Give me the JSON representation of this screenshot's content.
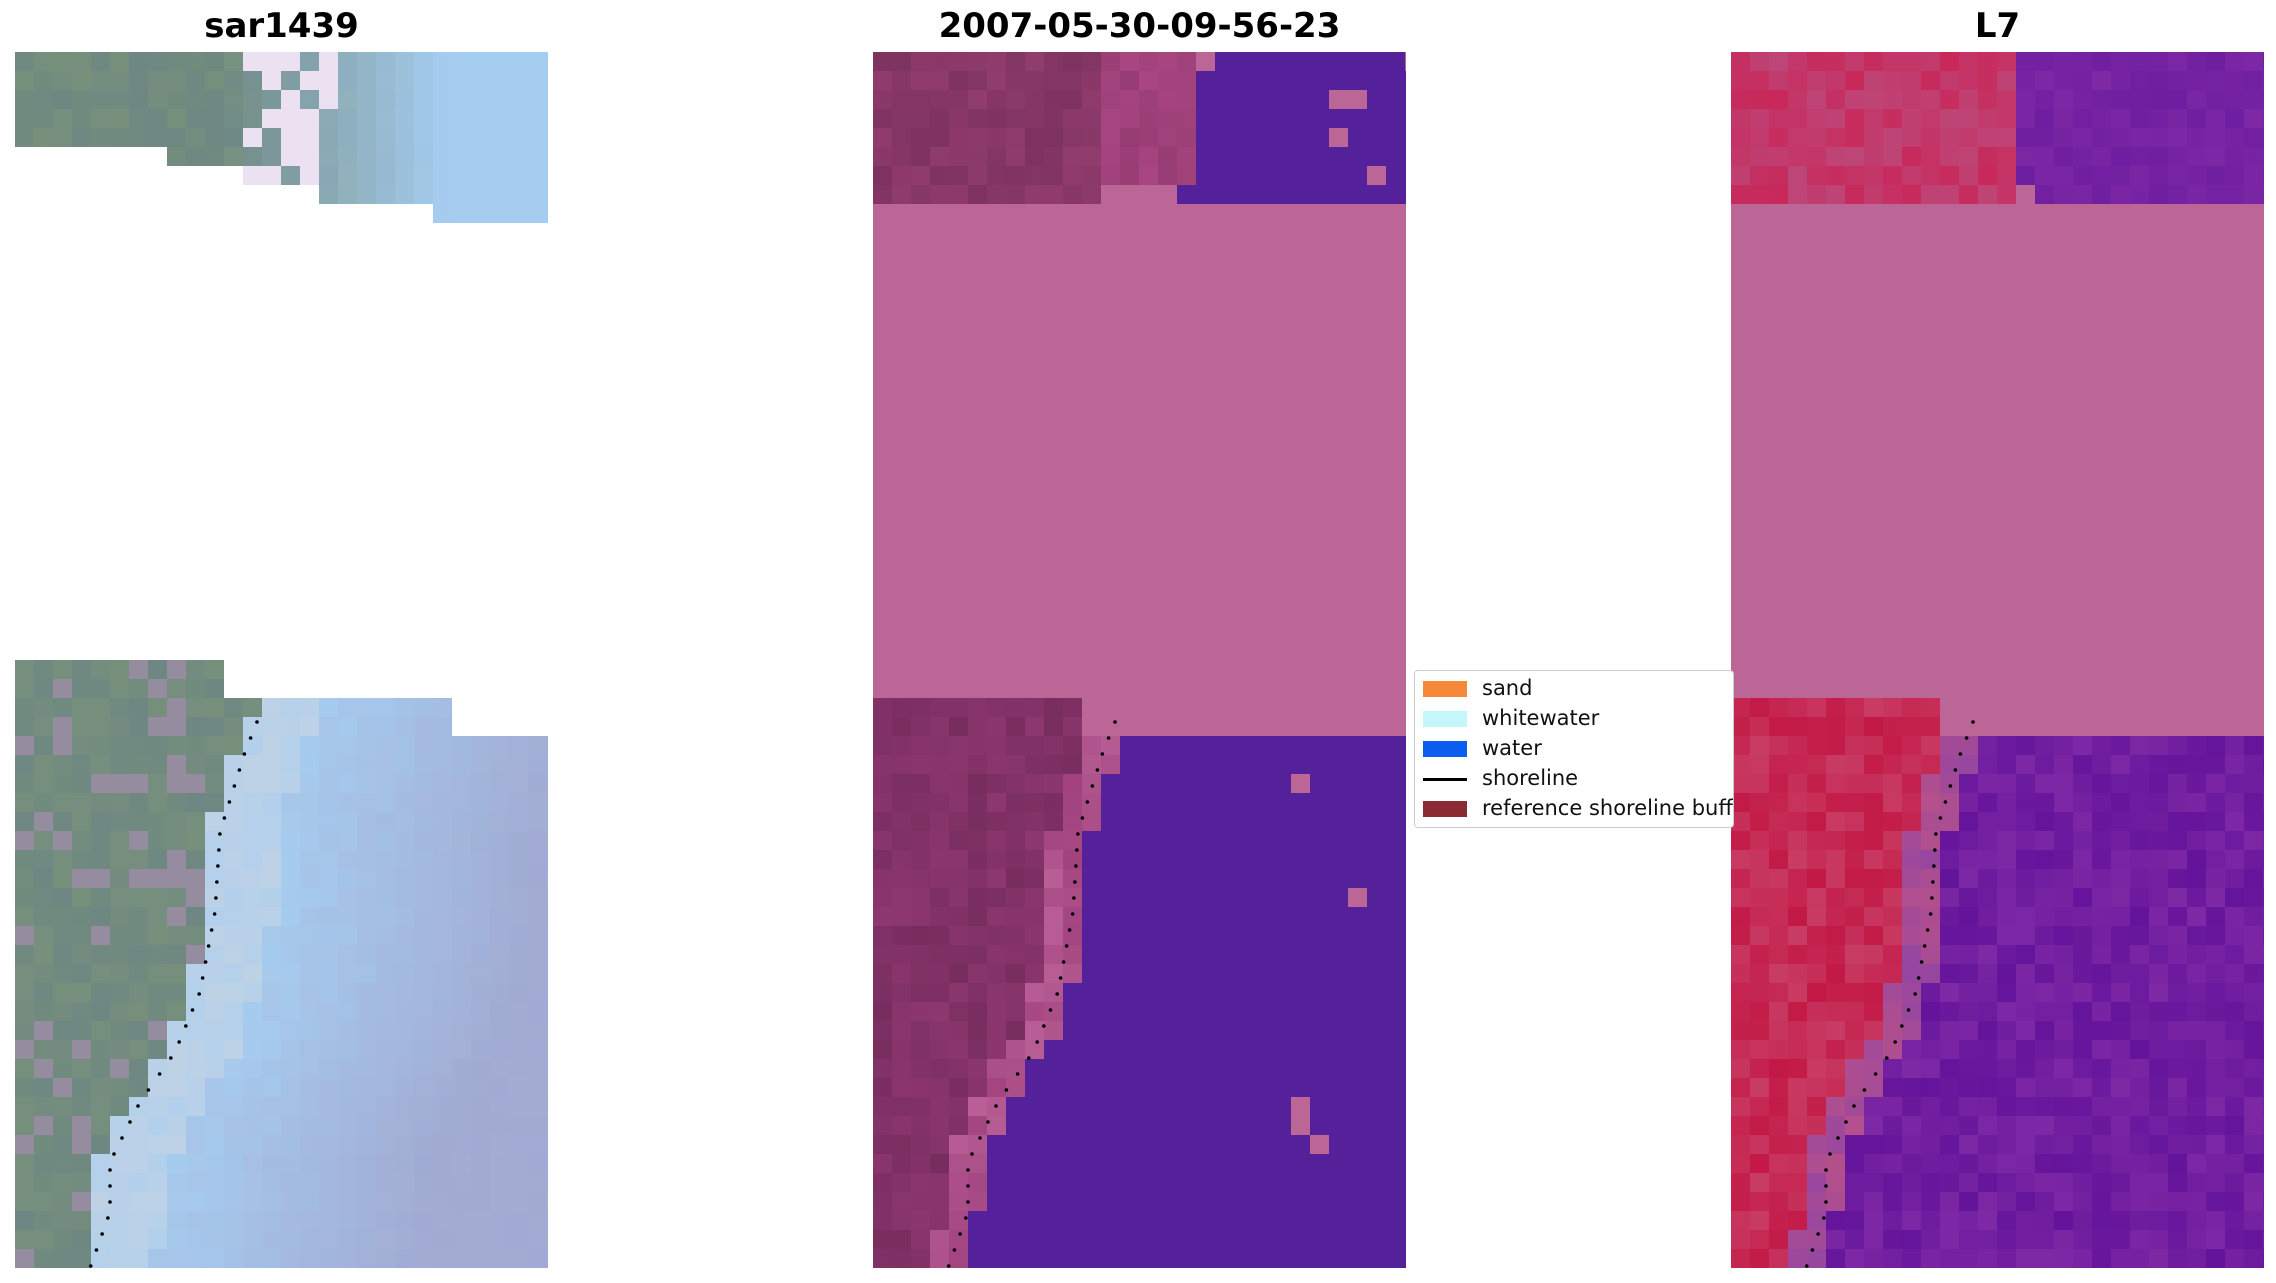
{
  "panels": [
    {
      "title": "sar1439"
    },
    {
      "title": "2007-05-30-09-56-23"
    },
    {
      "title": "L7"
    }
  ],
  "legend": [
    {
      "label": "sand",
      "color": "#f6883a",
      "kind": "patch"
    },
    {
      "label": "whitewater",
      "color": "#c4f7fb",
      "kind": "patch"
    },
    {
      "label": "water",
      "color": "#0b5ef0",
      "kind": "patch"
    },
    {
      "label": "shoreline",
      "color": "#000000",
      "kind": "line"
    },
    {
      "label": "reference shoreline buffer",
      "color": "#8b2a34",
      "kind": "patch"
    }
  ],
  "colors": {
    "buffer_overlay": "#bb6696",
    "water_class": "#55219a",
    "land_class": "#7e3364",
    "nir_land": "#c21f4d",
    "nir_water": "#6a16a0"
  }
}
